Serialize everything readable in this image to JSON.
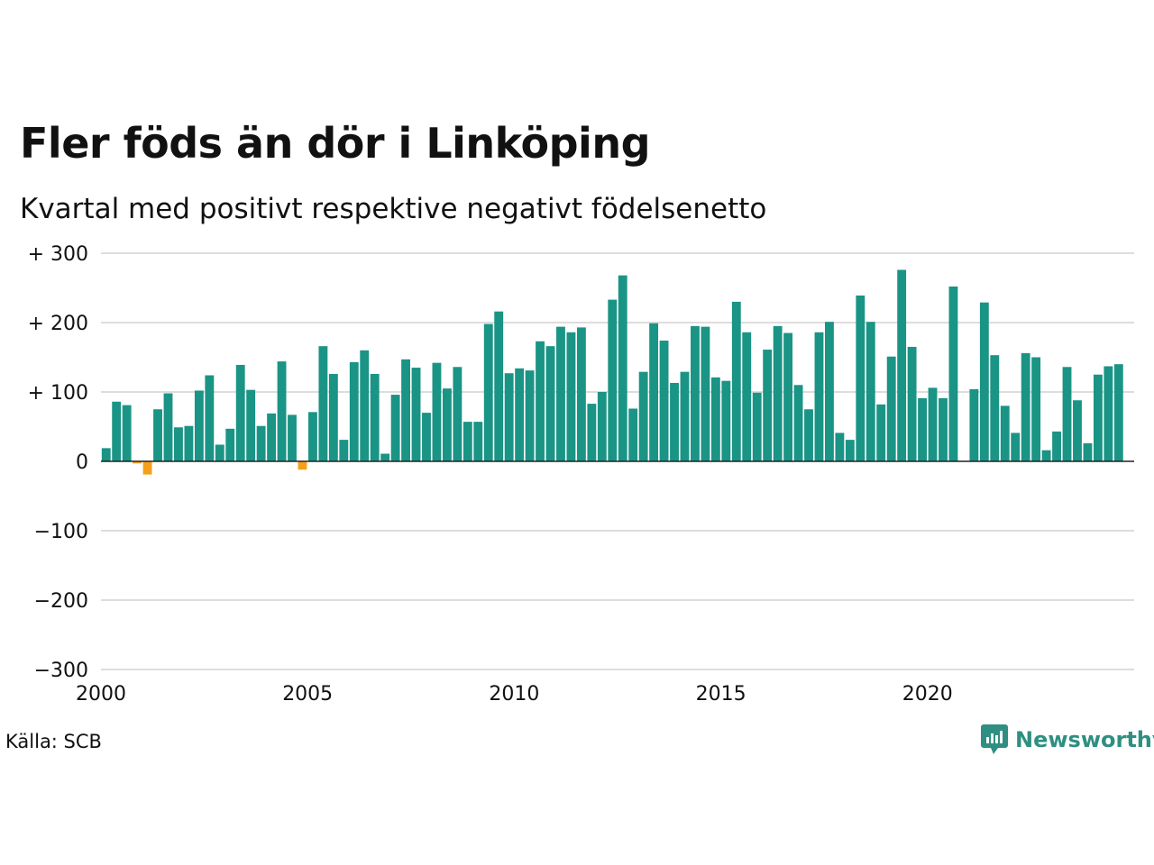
{
  "title": "Fler föds än dör i Linköping",
  "subtitle": "Kvartal med positivt respektive negativt födelsenetto",
  "source": "Källa: SCB",
  "brand": {
    "name": "Newsworthy",
    "icon": "newsworthy-logo-icon",
    "color": "#2e8f82"
  },
  "colors": {
    "positive": "#1a9485",
    "negative": "#f5a01c",
    "grid": "#dddddd",
    "axis": "#222222"
  },
  "chart_data": {
    "type": "bar",
    "title": "Fler föds än dör i Linköping",
    "subtitle": "Kvartal med positivt respektive negativt födelsenetto",
    "xlabel": "",
    "ylabel": "",
    "ylim": [
      -300,
      300
    ],
    "yticks": [
      {
        "value": 300,
        "label": "+ 300"
      },
      {
        "value": 200,
        "label": "+ 200"
      },
      {
        "value": 100,
        "label": "+ 100"
      },
      {
        "value": 0,
        "label": "0"
      },
      {
        "value": -100,
        "label": "−100"
      },
      {
        "value": -200,
        "label": "−200"
      },
      {
        "value": -300,
        "label": "−300"
      }
    ],
    "xticks": [
      {
        "value": 2000,
        "label": "2000"
      },
      {
        "value": 2005,
        "label": "2005"
      },
      {
        "value": 2010,
        "label": "2010"
      },
      {
        "value": 2015,
        "label": "2015"
      },
      {
        "value": 2020,
        "label": "2020"
      }
    ],
    "grid": true,
    "start_quarter": "2000 Q1",
    "values": [
      19,
      86,
      81,
      -3,
      -19,
      75,
      98,
      49,
      51,
      102,
      124,
      24,
      47,
      139,
      103,
      51,
      69,
      144,
      67,
      -12,
      71,
      166,
      126,
      31,
      143,
      160,
      126,
      11,
      96,
      147,
      135,
      70,
      142,
      105,
      136,
      57,
      57,
      198,
      216,
      127,
      134,
      131,
      173,
      166,
      194,
      186,
      193,
      83,
      100,
      233,
      268,
      76,
      129,
      199,
      174,
      113,
      129,
      195,
      194,
      121,
      116,
      230,
      186,
      99,
      161,
      195,
      185,
      110,
      75,
      186,
      201,
      41,
      31,
      239,
      201,
      82,
      151,
      276,
      165,
      91,
      106,
      91,
      252,
      0,
      104,
      229,
      153,
      80,
      41,
      156,
      150,
      16,
      43,
      136,
      88,
      26,
      125,
      137,
      140
    ]
  }
}
